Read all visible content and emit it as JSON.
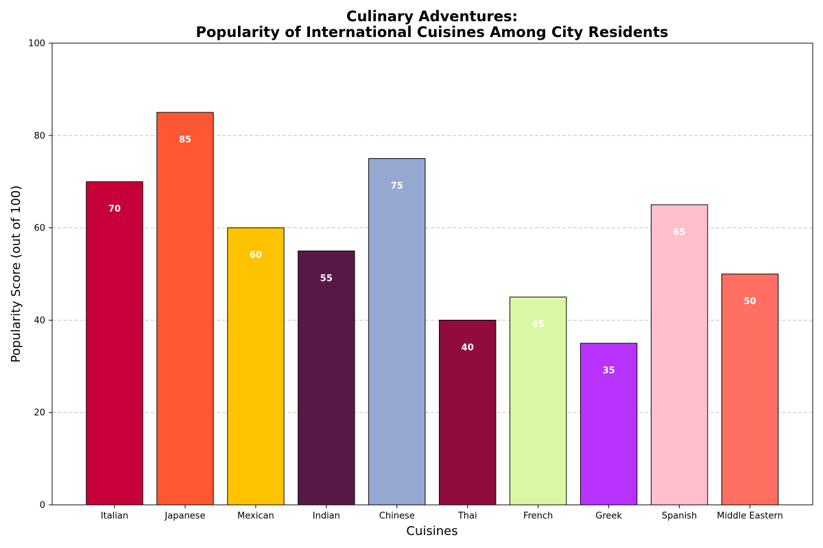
{
  "chart_data": {
    "type": "bar",
    "title_line1": "Culinary Adventures:",
    "title_line2": "Popularity of International Cuisines Among City Residents",
    "xlabel": "Cuisines",
    "ylabel": "Popularity Score (out of 100)",
    "ylim": [
      0,
      100
    ],
    "yticks": [
      0,
      20,
      40,
      60,
      80,
      100
    ],
    "grid": "y-dashed",
    "categories": [
      "Italian",
      "Japanese",
      "Mexican",
      "Indian",
      "Chinese",
      "Thai",
      "French",
      "Greek",
      "Spanish",
      "Middle Eastern"
    ],
    "values": [
      70,
      85,
      60,
      55,
      75,
      40,
      45,
      35,
      65,
      50
    ],
    "colors": [
      "#C70039",
      "#FF5733",
      "#FFC300",
      "#581845",
      "#94A8D1",
      "#900C3F",
      "#DAF7A6",
      "#B833FF",
      "#FFC0CB",
      "#FF6F61"
    ]
  }
}
